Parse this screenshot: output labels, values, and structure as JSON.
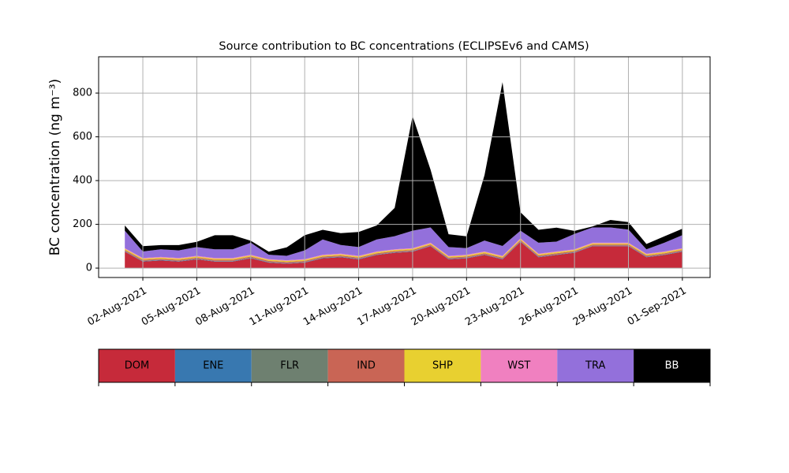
{
  "chart_data": {
    "type": "stacked_area",
    "title": "Source contribution to BC concentrations (ECLIPSEv6 and CAMS)",
    "y_label": "BC concentration (ng m⁻³)",
    "x": [
      "2021-08-01",
      "2021-08-02",
      "2021-08-03",
      "2021-08-04",
      "2021-08-05",
      "2021-08-06",
      "2021-08-07",
      "2021-08-08",
      "2021-08-09",
      "2021-08-10",
      "2021-08-11",
      "2021-08-12",
      "2021-08-13",
      "2021-08-14",
      "2021-08-15",
      "2021-08-16",
      "2021-08-17",
      "2021-08-18",
      "2021-08-19",
      "2021-08-20",
      "2021-08-21",
      "2021-08-22",
      "2021-08-23",
      "2021-08-24",
      "2021-08-25",
      "2021-08-26",
      "2021-08-27",
      "2021-08-28",
      "2021-08-29",
      "2021-08-30",
      "2021-08-31",
      "2021-09-01"
    ],
    "series": [
      {
        "name": "DOM",
        "color": "#c62a3a",
        "values": [
          75,
          30,
          35,
          30,
          40,
          30,
          30,
          45,
          25,
          20,
          25,
          45,
          50,
          40,
          60,
          70,
          75,
          100,
          40,
          45,
          60,
          40,
          120,
          50,
          60,
          70,
          100,
          100,
          100,
          50,
          60,
          75
        ]
      },
      {
        "name": "ENE",
        "color": "#3878b0",
        "values": [
          2,
          2,
          2,
          2,
          2,
          2,
          2,
          2,
          2,
          2,
          2,
          2,
          2,
          2,
          2,
          2,
          2,
          2,
          2,
          2,
          2,
          2,
          2,
          2,
          2,
          2,
          2,
          2,
          2,
          2,
          2,
          2
        ]
      },
      {
        "name": "FLR",
        "color": "#6e8070",
        "values": [
          1,
          1,
          1,
          1,
          1,
          1,
          1,
          1,
          1,
          1,
          1,
          1,
          1,
          1,
          1,
          1,
          1,
          1,
          1,
          1,
          1,
          1,
          1,
          1,
          1,
          1,
          1,
          1,
          1,
          1,
          1,
          1
        ]
      },
      {
        "name": "IND",
        "color": "#c96555",
        "values": [
          5,
          5,
          5,
          5,
          5,
          5,
          5,
          5,
          5,
          5,
          5,
          5,
          5,
          5,
          5,
          5,
          5,
          5,
          5,
          5,
          5,
          5,
          5,
          5,
          5,
          5,
          5,
          5,
          5,
          5,
          5,
          5
        ]
      },
      {
        "name": "SHP",
        "color": "#e8d030",
        "values": [
          5,
          5,
          5,
          5,
          5,
          5,
          5,
          5,
          5,
          5,
          5,
          5,
          5,
          5,
          5,
          5,
          5,
          5,
          5,
          5,
          5,
          5,
          5,
          5,
          5,
          5,
          5,
          5,
          5,
          5,
          5,
          5
        ]
      },
      {
        "name": "WST",
        "color": "#f080c0",
        "values": [
          3,
          3,
          3,
          3,
          3,
          3,
          3,
          3,
          3,
          3,
          3,
          3,
          3,
          3,
          3,
          3,
          3,
          3,
          3,
          3,
          3,
          3,
          3,
          3,
          3,
          3,
          3,
          3,
          3,
          3,
          3,
          3
        ]
      },
      {
        "name": "TRA",
        "color": "#9370db",
        "values": [
          80,
          30,
          35,
          35,
          40,
          40,
          40,
          55,
          20,
          20,
          40,
          70,
          40,
          40,
          55,
          60,
          80,
          70,
          40,
          30,
          50,
          45,
          35,
          50,
          45,
          70,
          70,
          70,
          60,
          20,
          40,
          60
        ]
      },
      {
        "name": "BB",
        "color": "#000000",
        "values": [
          24,
          24,
          19,
          24,
          24,
          64,
          64,
          9,
          14,
          39,
          69,
          44,
          54,
          69,
          64,
          129,
          524,
          264,
          59,
          54,
          299,
          749,
          84,
          59,
          64,
          14,
          4,
          34,
          34,
          24,
          29,
          29
        ]
      }
    ],
    "xlim": [
      "2021-07-30T13:00",
      "2021-09-02T13:00"
    ],
    "xticks": [
      {
        "value": "2021-08-02",
        "label": "02-Aug-2021"
      },
      {
        "value": "2021-08-05",
        "label": "05-Aug-2021"
      },
      {
        "value": "2021-08-08",
        "label": "08-Aug-2021"
      },
      {
        "value": "2021-08-11",
        "label": "11-Aug-2021"
      },
      {
        "value": "2021-08-14",
        "label": "14-Aug-2021"
      },
      {
        "value": "2021-08-17",
        "label": "17-Aug-2021"
      },
      {
        "value": "2021-08-20",
        "label": "20-Aug-2021"
      },
      {
        "value": "2021-08-23",
        "label": "23-Aug-2021"
      },
      {
        "value": "2021-08-26",
        "label": "26-Aug-2021"
      },
      {
        "value": "2021-08-29",
        "label": "29-Aug-2021"
      },
      {
        "value": "2021-09-01",
        "label": "01-Sep-2021"
      }
    ],
    "ylim": [
      -43,
      966
    ],
    "yticks": [
      0,
      200,
      400,
      600,
      800
    ],
    "grid": true
  }
}
